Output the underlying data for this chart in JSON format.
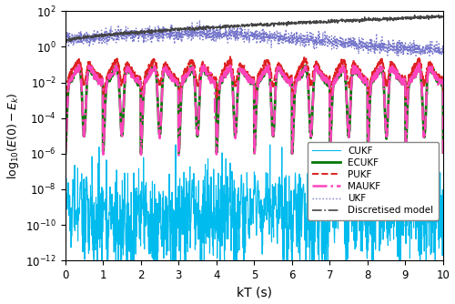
{
  "xlabel": "kT (s)",
  "ylabel": "log$_{10}$(E(0) - E$_k$)",
  "xlim": [
    0,
    10
  ],
  "ylim_log": [
    -12,
    2
  ],
  "ytick_exponents": [
    -12,
    -10,
    -8,
    -6,
    -4,
    -2,
    0,
    2
  ],
  "xticks": [
    0,
    1,
    2,
    3,
    4,
    5,
    6,
    7,
    8,
    9,
    10
  ],
  "legend_entries": [
    "Discretised model",
    "UKF",
    "MAUKF",
    "PUKF",
    "ECUKF",
    "CUKF"
  ],
  "colors": {
    "disc_model": "#444444",
    "ukf": "#7777cc",
    "maukf": "#ff44bb",
    "pukf": "#dd2222",
    "ecukf": "#007700",
    "cukf": "#00bbee"
  },
  "line_styles": {
    "disc_model": "-.",
    "ukf": ":",
    "maukf": "-.",
    "pukf": "--",
    "ecukf": "-",
    "cukf": "-"
  },
  "line_widths": {
    "disc_model": 1.2,
    "ukf": 1.0,
    "maukf": 1.8,
    "pukf": 1.4,
    "ecukf": 2.0,
    "cukf": 0.8
  },
  "n_points": 2000,
  "random_seed": 7,
  "figsize": [
    5.0,
    3.34
  ],
  "dpi": 100
}
